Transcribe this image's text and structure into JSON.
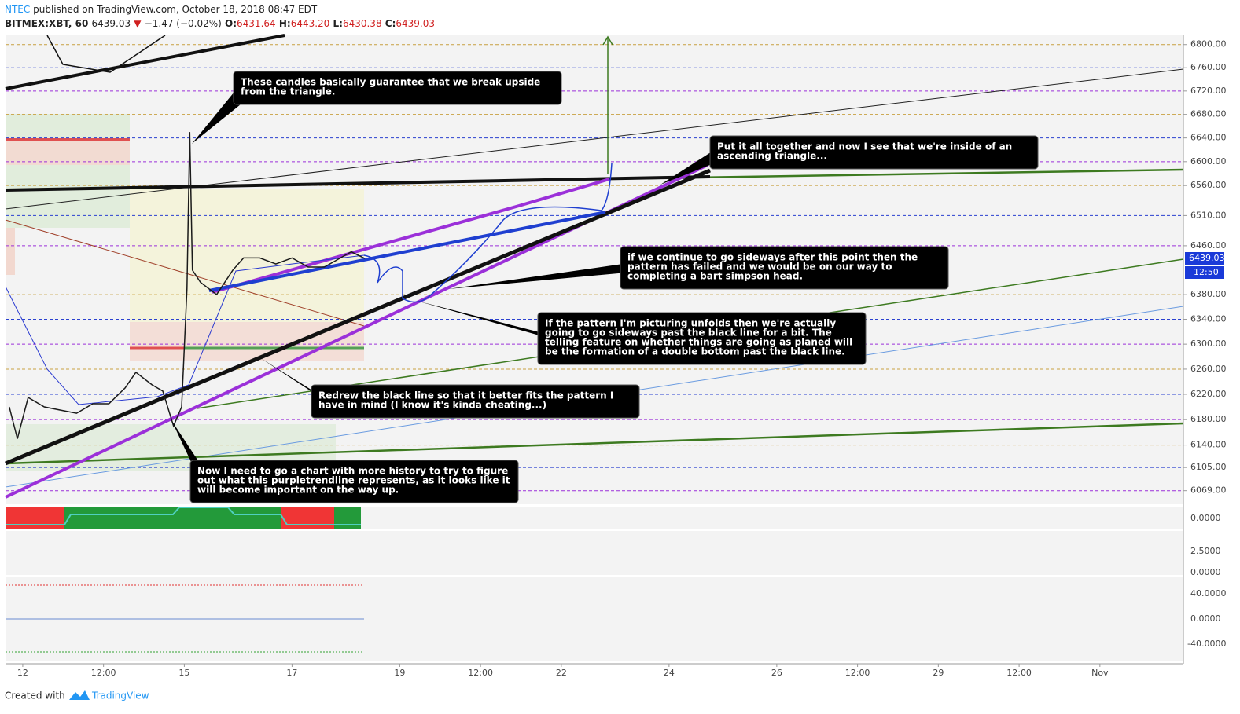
{
  "header": {
    "author": "NTEC",
    "published": "published on TradingView.com, October 18, 2018 08:47 EDT",
    "symbol": "BITMEX:XBT, 60",
    "last": "6439.03",
    "change": "−1.47 (−0.02%)",
    "open_label": "O:",
    "open": "6431.64",
    "high_label": "H:",
    "high": "6443.20",
    "low_label": "L:",
    "low": "6430.38",
    "close_label": "C:",
    "close": "6439.03"
  },
  "chart_data": {
    "type": "line",
    "log_scale": true,
    "color": "#1a1a1a",
    "x": [
      11.75,
      11.9,
      12.1,
      12.4,
      12.7,
      13.0,
      13.3,
      13.6,
      13.9,
      14.1,
      14.4,
      14.6,
      14.8,
      14.95,
      15.05,
      15.1,
      15.15,
      15.3,
      15.6,
      15.9,
      16.1,
      16.4,
      16.7,
      17.0,
      17.3,
      17.6,
      17.9,
      18.1,
      18.35
    ],
    "values": [
      6200,
      6150,
      6215,
      6200,
      6195,
      6190,
      6205,
      6205,
      6230,
      6255,
      6235,
      6225,
      6170,
      6200,
      6390,
      6650,
      6420,
      6400,
      6380,
      6420,
      6440,
      6440,
      6430,
      6440,
      6425,
      6425,
      6440,
      6450,
      6439.03
    ],
    "xlim": [
      11.68,
      33.55
    ],
    "ylim": [
      6048,
      6816
    ],
    "xticks": [
      {
        "value": 12,
        "label": "12"
      },
      {
        "value": 13.5,
        "label": "12:00"
      },
      {
        "value": 15,
        "label": "15"
      },
      {
        "value": 17,
        "label": "17"
      },
      {
        "value": 19,
        "label": "19"
      },
      {
        "value": 20.5,
        "label": "12:00"
      },
      {
        "value": 22,
        "label": "22"
      },
      {
        "value": 24,
        "label": "24"
      },
      {
        "value": 26,
        "label": "26"
      },
      {
        "value": 27.5,
        "label": "12:00"
      },
      {
        "value": 29,
        "label": "29"
      },
      {
        "value": 30.5,
        "label": "12:00"
      },
      {
        "value": 32,
        "label": "Nov"
      }
    ],
    "yticks": [
      {
        "value": 6800,
        "label": "6800.00"
      },
      {
        "value": 6760,
        "label": "6760.00"
      },
      {
        "value": 6720,
        "label": "6720.00"
      },
      {
        "value": 6680,
        "label": "6680.00"
      },
      {
        "value": 6640,
        "label": "6640.00"
      },
      {
        "value": 6600,
        "label": "6600.00"
      },
      {
        "value": 6560,
        "label": "6560.00"
      },
      {
        "value": 6510,
        "label": "6510.00"
      },
      {
        "value": 6460,
        "label": "6460.00"
      },
      {
        "value": 6380,
        "label": "6380.00"
      },
      {
        "value": 6340,
        "label": "6340.00"
      },
      {
        "value": 6300,
        "label": "6300.00"
      },
      {
        "value": 6260,
        "label": "6260.00"
      },
      {
        "value": 6220,
        "label": "6220.00"
      },
      {
        "value": 6180,
        "label": "6180.00"
      },
      {
        "value": 6140,
        "label": "6140.00"
      },
      {
        "value": 6105,
        "label": "6105.00"
      },
      {
        "value": 6069,
        "label": "6069.00"
      }
    ],
    "price_tag": "6439.03",
    "countdown": "12:50"
  },
  "indicators": {
    "band_axis": "0.0000",
    "volume_axis": [
      "2.5000",
      "0.0000"
    ],
    "osc_axis": [
      "40.0000",
      "0.0000",
      "-40.0000"
    ]
  },
  "annotations": [
    {
      "lines": [
        "These candles basically guarantee that we break upside",
        "from the triangle."
      ]
    },
    {
      "lines": [
        "Put it all together and now I see that we're inside of an",
        "ascending triangle..."
      ]
    },
    {
      "lines": [
        "if we continue to go sideways after this point then the",
        "pattern has failed and we would be on our way to",
        "completing a bart simpson head."
      ]
    },
    {
      "lines": [
        "If the pattern I'm picturing unfolds then we're actually",
        "going to go sideways past the black line for a bit.  The",
        "telling feature on whether things are going as planed will",
        "be the formation of a double bottom past the black line."
      ]
    },
    {
      "lines": [
        "Redrew the black line so that it better fits the pattern I",
        "have in mind (I know it's kinda cheating...)"
      ]
    },
    {
      "lines": [
        "Now I need to go a chart with more history to try to figure",
        "out what this purpletrendline represents, as it looks like it",
        "will become important on the way up."
      ]
    }
  ],
  "footer": {
    "created": "Created with",
    "brand": "TradingView"
  }
}
